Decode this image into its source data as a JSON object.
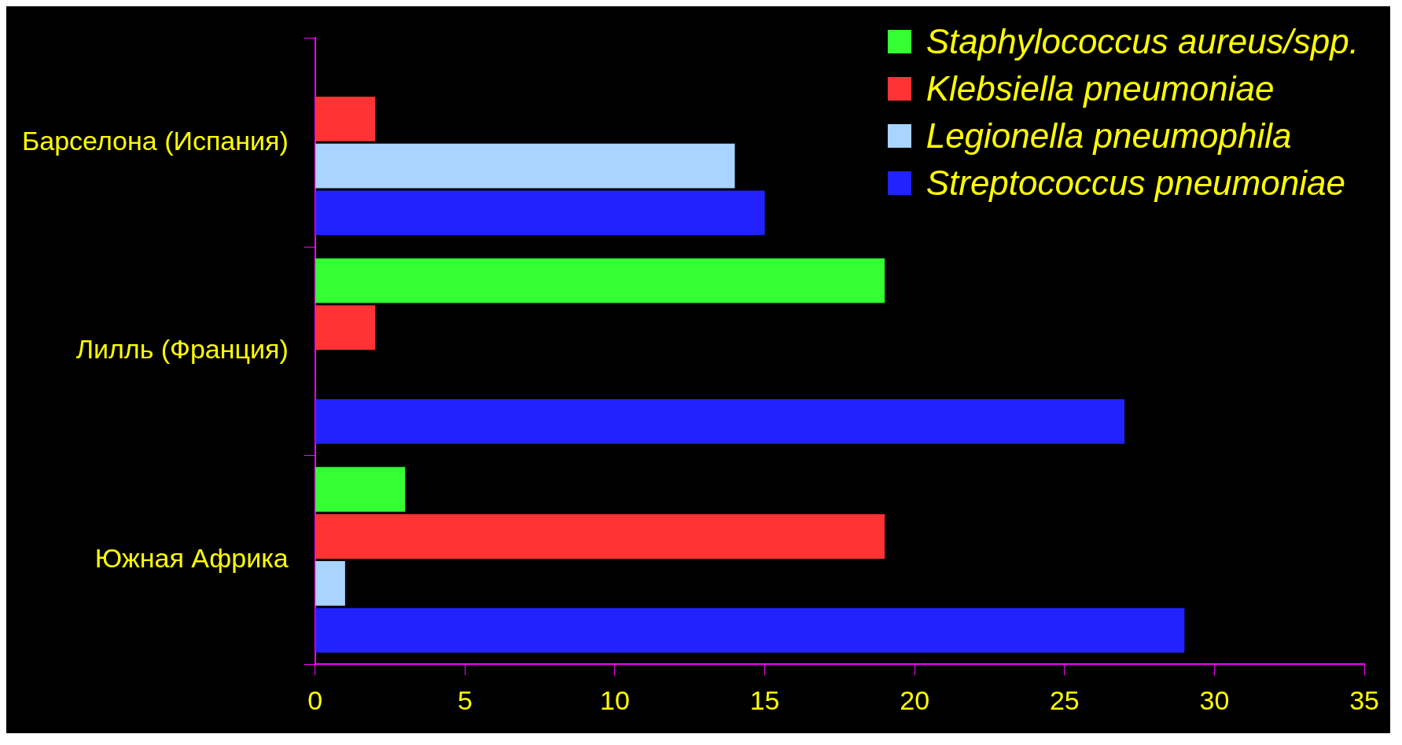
{
  "chart_data": {
    "type": "bar",
    "orientation": "horizontal",
    "categories": [
      "Барселона (Испания)",
      "Лилль (Франция)",
      "Южная Африка"
    ],
    "series": [
      {
        "name": "Staphylococcus aureus/spp.",
        "color": "#33ff33",
        "values": [
          null,
          19,
          3
        ]
      },
      {
        "name": "Klebsiella pneumoniae",
        "color": "#ff3333",
        "values": [
          2,
          2,
          19
        ]
      },
      {
        "name": "Legionella pneumophila",
        "color": "#a8d4ff",
        "values": [
          14,
          null,
          1
        ]
      },
      {
        "name": "Streptococcus pneumoniae",
        "color": "#2222ff",
        "values": [
          15,
          27,
          29
        ]
      }
    ],
    "xlim": [
      0,
      35
    ],
    "xticks": [
      0,
      5,
      10,
      15,
      20,
      25,
      30,
      35
    ],
    "grid": false,
    "legend": "top right"
  }
}
